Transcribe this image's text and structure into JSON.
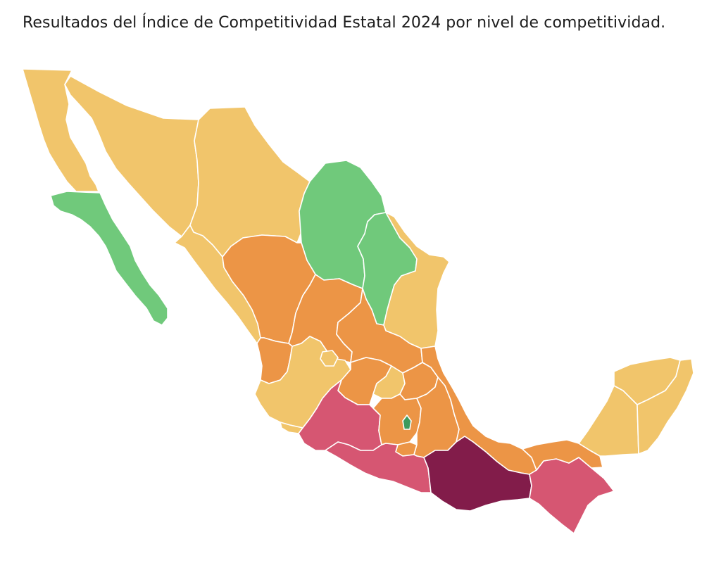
{
  "title": "Resultados del Índice de Competitividad Estatal 2024 por nivel de competitividad.",
  "levels": {
    "alta": {
      "color": "#70c97b"
    },
    "media_alta": {
      "color": "#f1c56b"
    },
    "media_baja": {
      "color": "#ec9546"
    },
    "baja": {
      "color": "#d65672"
    },
    "muy_baja": {
      "color": "#821c4a"
    },
    "cdmx": {
      "color": "#3c9a5d"
    }
  },
  "states": {
    "baja_california": "media_alta",
    "baja_california_sur": "alta",
    "sonora": "media_alta",
    "chihuahua": "media_alta",
    "coahuila": "alta",
    "nuevo_leon": "alta",
    "tamaulipas": "media_alta",
    "sinaloa": "media_alta",
    "durango": "media_baja",
    "zacatecas": "media_baja",
    "san_luis_potosi": "media_baja",
    "nayarit": "media_baja",
    "aguascalientes": "media_alta",
    "jalisco": "media_alta",
    "colima": "media_alta",
    "guanajuato": "media_baja",
    "queretaro": "media_alta",
    "hidalgo": "media_baja",
    "michoacan": "baja",
    "estado_de_mexico": "media_baja",
    "ciudad_de_mexico": "cdmx",
    "morelos": "media_baja",
    "tlaxcala": "media_baja",
    "puebla": "media_baja",
    "veracruz": "media_baja",
    "guerrero": "baja",
    "oaxaca": "muy_baja",
    "chiapas": "baja",
    "tabasco": "media_baja",
    "campeche": "media_alta",
    "yucatan": "media_alta",
    "quintana_roo": "media_alta"
  }
}
